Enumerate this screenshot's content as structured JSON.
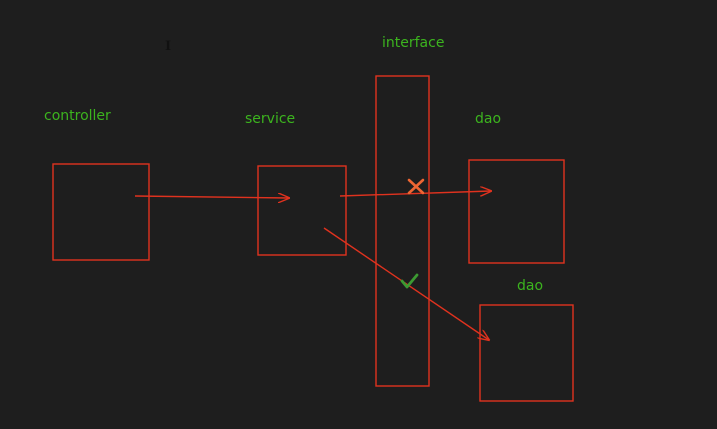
{
  "labels": {
    "controller": "controller",
    "service": "service",
    "interface": "interface",
    "dao_top": "dao",
    "dao_bottom": "dao"
  },
  "cursor_glyph": "I",
  "colors": {
    "background": "#1e1e1e",
    "stroke": "#e0321e",
    "label": "#3cb41e",
    "cross": "#ee6633",
    "check": "#3c9a32",
    "cursor": "#111111"
  },
  "icons": {
    "blocked": "cross-icon",
    "allowed": "check-icon",
    "cursor": "text-cursor-icon"
  }
}
